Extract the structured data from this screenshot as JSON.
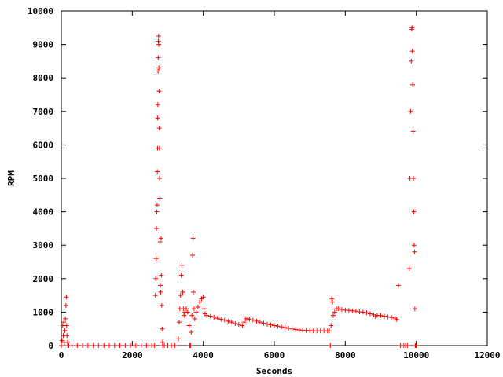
{
  "chart_data": {
    "type": "scatter",
    "title": "",
    "xlabel": "Seconds",
    "ylabel": "RPM",
    "xlim": [
      0,
      12000
    ],
    "ylim": [
      0,
      10000
    ],
    "xticks": [
      0,
      2000,
      4000,
      6000,
      8000,
      10000,
      12000
    ],
    "yticks": [
      0,
      1000,
      2000,
      3000,
      4000,
      5000,
      6000,
      7000,
      8000,
      9000,
      10000
    ],
    "grid": false,
    "legend": "none",
    "marker": "+",
    "color": "#ff0000",
    "series": [
      {
        "values": [
          [
            0,
            0
          ],
          [
            20,
            150
          ],
          [
            40,
            600
          ],
          [
            55,
            300
          ],
          [
            70,
            700
          ],
          [
            85,
            100
          ],
          [
            100,
            450
          ],
          [
            115,
            800
          ],
          [
            130,
            1200
          ],
          [
            140,
            1450
          ],
          [
            150,
            600
          ],
          [
            160,
            300
          ],
          [
            175,
            100
          ],
          [
            190,
            0
          ],
          [
            210,
            0
          ],
          [
            300,
            0
          ],
          [
            450,
            0
          ],
          [
            600,
            0
          ],
          [
            750,
            0
          ],
          [
            900,
            0
          ],
          [
            1050,
            0
          ],
          [
            1200,
            0
          ],
          [
            1350,
            0
          ],
          [
            1500,
            0
          ],
          [
            1650,
            0
          ],
          [
            1800,
            0
          ],
          [
            1950,
            0
          ],
          [
            2100,
            0
          ],
          [
            2250,
            0
          ],
          [
            2400,
            0
          ],
          [
            2550,
            0
          ],
          [
            2620,
            0
          ],
          [
            2650,
            1500
          ],
          [
            2660,
            2000
          ],
          [
            2670,
            2600
          ],
          [
            2680,
            3500
          ],
          [
            2690,
            4000
          ],
          [
            2700,
            4200
          ],
          [
            2705,
            5200
          ],
          [
            2710,
            5900
          ],
          [
            2715,
            6800
          ],
          [
            2720,
            7200
          ],
          [
            2725,
            8200
          ],
          [
            2730,
            8600
          ],
          [
            2735,
            9100
          ],
          [
            2740,
            9250
          ],
          [
            2745,
            9000
          ],
          [
            2750,
            8300
          ],
          [
            2755,
            7600
          ],
          [
            2760,
            6500
          ],
          [
            2765,
            5900
          ],
          [
            2770,
            5000
          ],
          [
            2775,
            4400
          ],
          [
            2780,
            3100
          ],
          [
            2790,
            1800
          ],
          [
            2800,
            1600
          ],
          [
            2810,
            3200
          ],
          [
            2820,
            2100
          ],
          [
            2830,
            1200
          ],
          [
            2840,
            500
          ],
          [
            2850,
            100
          ],
          [
            2860,
            0
          ],
          [
            2900,
            0
          ],
          [
            3000,
            0
          ],
          [
            3100,
            0
          ],
          [
            3200,
            0
          ],
          [
            3300,
            200
          ],
          [
            3320,
            700
          ],
          [
            3340,
            1100
          ],
          [
            3360,
            1500
          ],
          [
            3380,
            2100
          ],
          [
            3400,
            2400
          ],
          [
            3420,
            1600
          ],
          [
            3440,
            1100
          ],
          [
            3460,
            900
          ],
          [
            3480,
            1000
          ],
          [
            3520,
            1100
          ],
          [
            3560,
            1000
          ],
          [
            3600,
            600
          ],
          [
            3620,
            0
          ],
          [
            3640,
            0
          ],
          [
            3660,
            400
          ],
          [
            3680,
            900
          ],
          [
            3700,
            2700
          ],
          [
            3710,
            3200
          ],
          [
            3720,
            1600
          ],
          [
            3740,
            1100
          ],
          [
            3760,
            800
          ],
          [
            3800,
            1000
          ],
          [
            3850,
            1150
          ],
          [
            3900,
            1300
          ],
          [
            3950,
            1400
          ],
          [
            4000,
            1450
          ],
          [
            4020,
            1100
          ],
          [
            4050,
            950
          ],
          [
            4100,
            900
          ],
          [
            4200,
            880
          ],
          [
            4300,
            850
          ],
          [
            4400,
            820
          ],
          [
            4500,
            790
          ],
          [
            4600,
            760
          ],
          [
            4700,
            730
          ],
          [
            4800,
            700
          ],
          [
            4900,
            660
          ],
          [
            5000,
            630
          ],
          [
            5100,
            600
          ],
          [
            5150,
            700
          ],
          [
            5200,
            800
          ],
          [
            5250,
            800
          ],
          [
            5300,
            790
          ],
          [
            5400,
            760
          ],
          [
            5500,
            730
          ],
          [
            5600,
            700
          ],
          [
            5700,
            670
          ],
          [
            5800,
            640
          ],
          [
            5900,
            620
          ],
          [
            6000,
            600
          ],
          [
            6100,
            580
          ],
          [
            6200,
            560
          ],
          [
            6300,
            540
          ],
          [
            6400,
            520
          ],
          [
            6500,
            500
          ],
          [
            6600,
            480
          ],
          [
            6700,
            470
          ],
          [
            6800,
            460
          ],
          [
            6900,
            450
          ],
          [
            7000,
            450
          ],
          [
            7100,
            440
          ],
          [
            7200,
            440
          ],
          [
            7300,
            440
          ],
          [
            7400,
            440
          ],
          [
            7500,
            440
          ],
          [
            7550,
            440
          ],
          [
            7580,
            0
          ],
          [
            7600,
            600
          ],
          [
            7620,
            1400
          ],
          [
            7640,
            1300
          ],
          [
            7660,
            900
          ],
          [
            7700,
            1000
          ],
          [
            7750,
            1100
          ],
          [
            7800,
            1100
          ],
          [
            7900,
            1080
          ],
          [
            8000,
            1060
          ],
          [
            8100,
            1050
          ],
          [
            8200,
            1040
          ],
          [
            8300,
            1030
          ],
          [
            8400,
            1010
          ],
          [
            8500,
            1000
          ],
          [
            8600,
            980
          ],
          [
            8700,
            950
          ],
          [
            8800,
            920
          ],
          [
            8850,
            870
          ],
          [
            8900,
            900
          ],
          [
            9000,
            900
          ],
          [
            9100,
            880
          ],
          [
            9200,
            860
          ],
          [
            9300,
            840
          ],
          [
            9400,
            820
          ],
          [
            9450,
            780
          ],
          [
            9500,
            1800
          ],
          [
            9550,
            0
          ],
          [
            9600,
            0
          ],
          [
            9650,
            0
          ],
          [
            9700,
            0
          ],
          [
            9750,
            0
          ],
          [
            9800,
            2300
          ],
          [
            9820,
            5000
          ],
          [
            9840,
            7000
          ],
          [
            9860,
            8500
          ],
          [
            9870,
            9450
          ],
          [
            9880,
            9500
          ],
          [
            9890,
            8800
          ],
          [
            9900,
            7800
          ],
          [
            9910,
            6400
          ],
          [
            9920,
            5000
          ],
          [
            9930,
            4000
          ],
          [
            9940,
            3000
          ],
          [
            9950,
            2800
          ],
          [
            9960,
            1100
          ],
          [
            9970,
            0
          ],
          [
            9980,
            0
          ],
          [
            9990,
            0
          ],
          [
            10000,
            0
          ]
        ]
      }
    ]
  }
}
